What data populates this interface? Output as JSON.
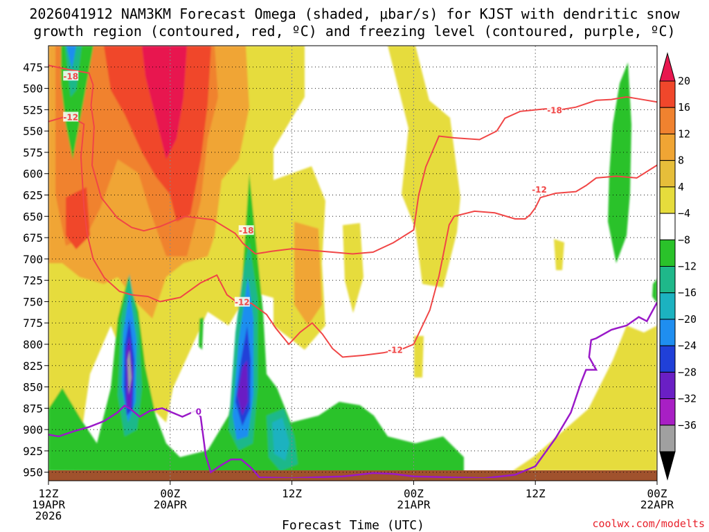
{
  "chart_data": {
    "type": "heatmap",
    "title_line1": "2026041912 NAM3KM Forecast Omega (shaded, μbar/s) for KJST with dendritic snow",
    "title_line2": "growth region (contoured, red, ºC) and freezing level (contoured, purple, ºC)",
    "xlabel": "Forecast Time (UTC)",
    "credit": "coolwx.com/modelts",
    "y_ticks": [
      475,
      500,
      525,
      550,
      575,
      600,
      625,
      650,
      675,
      700,
      725,
      750,
      775,
      800,
      825,
      850,
      875,
      900,
      925,
      950
    ],
    "y_range_hpa": [
      450,
      960
    ],
    "x_range_hours": [
      0,
      60
    ],
    "x_ticks": [
      {
        "hour": 0,
        "line1": "12Z",
        "line2": "19APR",
        "line3": "2026"
      },
      {
        "hour": 12,
        "line1": "00Z",
        "line2": "20APR",
        "line3": ""
      },
      {
        "hour": 24,
        "line1": "12Z",
        "line2": "",
        "line3": ""
      },
      {
        "hour": 36,
        "line1": "00Z",
        "line2": "21APR",
        "line3": ""
      },
      {
        "hour": 48,
        "line1": "12Z",
        "line2": "",
        "line3": ""
      },
      {
        "hour": 60,
        "line1": "00Z",
        "line2": "22APR",
        "line3": ""
      }
    ],
    "colorbar": {
      "labels": [
        "20",
        "16",
        "12",
        "8",
        "4",
        "−4",
        "−8",
        "−12",
        "−16",
        "−20",
        "−24",
        "−28",
        "−32",
        "−36"
      ],
      "colors": [
        "#e8174f",
        "#f0472b",
        "#f0822f",
        "#f0a534",
        "#e6be3a",
        "#e6dc3c",
        "#ffffff",
        "#2ac22a",
        "#1fb88a",
        "#1cb2c0",
        "#1f8ef0",
        "#2040d8",
        "#6a1fc4",
        "#a81fc4",
        "#a0a0a0",
        "#000000"
      ]
    },
    "omega_features": [
      {
        "name": "upward motion core",
        "t": [
          3.5,
          6.5
        ],
        "p": [
          440,
          660
        ],
        "value": 14
      },
      {
        "name": "upward motion max",
        "t": [
          10.5,
          13.5
        ],
        "p": [
          440,
          620
        ],
        "value": 20
      },
      {
        "name": "subsidence column 1",
        "t": [
          7.3,
          8.6
        ],
        "p": [
          690,
          910
        ],
        "value": -28
      },
      {
        "name": "subsidence column 2",
        "t": [
          17.5,
          19.5
        ],
        "p": [
          580,
          900
        ],
        "value": -28
      },
      {
        "name": "low-level sinking",
        "t": [
          19,
          41
        ],
        "p": [
          830,
          950
        ],
        "value": -8
      },
      {
        "name": "east green band",
        "t": [
          55.5,
          57.5
        ],
        "p": [
          470,
          670
        ],
        "value": -6
      },
      {
        "name": "late rising motion",
        "t": [
          52,
          60
        ],
        "p": [
          760,
          950
        ],
        "value": 6
      }
    ],
    "dgz_contours": [
      {
        "label": "-18",
        "points": [
          [
            0,
            473
          ],
          [
            2,
            478
          ],
          [
            4,
            482
          ],
          [
            4.4,
            496
          ],
          [
            4.2,
            520
          ],
          [
            4.5,
            545
          ],
          [
            4.3,
            590
          ],
          [
            5.2,
            628
          ],
          [
            6.8,
            652
          ],
          [
            8.2,
            663
          ],
          [
            9.4,
            667
          ],
          [
            11,
            662
          ],
          [
            13.4,
            650
          ],
          [
            16.2,
            654
          ],
          [
            18.4,
            670
          ],
          [
            19.2,
            682
          ],
          [
            20.4,
            694
          ],
          [
            22,
            691
          ],
          [
            24,
            688
          ],
          [
            26,
            690
          ],
          [
            28,
            692
          ],
          [
            30,
            694
          ],
          [
            32,
            692
          ],
          [
            34,
            681
          ],
          [
            36,
            666
          ],
          [
            36.5,
            625
          ],
          [
            37.2,
            592
          ],
          [
            38.5,
            556
          ],
          [
            40,
            558
          ],
          [
            42.5,
            560
          ],
          [
            44.2,
            550
          ],
          [
            45,
            535
          ],
          [
            46.5,
            527
          ],
          [
            49,
            524
          ],
          [
            50.5,
            525
          ],
          [
            52,
            522
          ],
          [
            54,
            514
          ],
          [
            55.5,
            513
          ],
          [
            57,
            510
          ],
          [
            58,
            512
          ],
          [
            60,
            516
          ]
        ]
      },
      {
        "label": "-12",
        "points": [
          [
            0,
            539
          ],
          [
            2,
            532
          ],
          [
            3.5,
            542
          ],
          [
            3.2,
            580
          ],
          [
            3.5,
            640
          ],
          [
            3.8,
            670
          ],
          [
            4.4,
            700
          ],
          [
            5.5,
            722
          ],
          [
            7,
            738
          ],
          [
            8.2,
            742
          ],
          [
            9.8,
            744
          ],
          [
            11,
            750
          ],
          [
            13,
            745
          ],
          [
            15,
            728
          ],
          [
            16.6,
            719
          ],
          [
            17.6,
            742
          ],
          [
            18.5,
            750
          ],
          [
            20,
            752
          ],
          [
            21.5,
            765
          ],
          [
            22.4,
            781
          ],
          [
            23.7,
            800
          ],
          [
            24.8,
            786
          ],
          [
            26,
            775
          ],
          [
            27,
            788
          ],
          [
            28,
            805
          ],
          [
            29,
            815
          ],
          [
            31,
            813
          ],
          [
            33,
            810
          ],
          [
            35,
            805
          ],
          [
            36,
            800
          ],
          [
            37.6,
            760
          ],
          [
            38.5,
            720
          ],
          [
            39,
            690
          ],
          [
            39.5,
            660
          ],
          [
            40,
            650
          ],
          [
            42,
            644
          ],
          [
            44,
            646
          ],
          [
            46,
            653
          ],
          [
            47,
            653
          ],
          [
            47.5,
            648
          ],
          [
            48,
            640
          ],
          [
            48.5,
            628
          ],
          [
            50,
            623
          ],
          [
            52,
            621
          ],
          [
            53,
            614
          ],
          [
            54,
            605
          ],
          [
            56,
            603
          ],
          [
            58,
            605
          ],
          [
            60,
            590
          ]
        ]
      }
    ],
    "freezing_contour": {
      "label": "0",
      "points": [
        [
          0,
          906
        ],
        [
          1,
          908
        ],
        [
          2.5,
          902
        ],
        [
          4,
          897
        ],
        [
          5.5,
          890
        ],
        [
          6.8,
          880
        ],
        [
          7.5,
          872
        ],
        [
          8.1,
          876
        ],
        [
          9,
          885
        ],
        [
          10,
          878
        ],
        [
          11.2,
          875
        ],
        [
          12.2,
          880
        ],
        [
          13.2,
          885
        ],
        [
          14.5,
          878
        ],
        [
          15,
          885
        ],
        [
          15.5,
          930
        ],
        [
          16,
          950
        ],
        [
          17,
          942
        ],
        [
          18,
          935
        ],
        [
          19,
          935
        ],
        [
          20,
          945
        ],
        [
          20.8,
          956
        ],
        [
          24,
          957
        ],
        [
          29,
          955
        ],
        [
          32,
          951
        ],
        [
          34,
          952
        ],
        [
          36,
          955
        ],
        [
          43,
          957
        ],
        [
          46,
          953
        ],
        [
          48,
          943
        ],
        [
          50,
          910
        ],
        [
          51.5,
          880
        ],
        [
          52.5,
          845
        ],
        [
          53,
          830
        ],
        [
          54,
          830
        ],
        [
          53.3,
          815
        ],
        [
          53.5,
          795
        ],
        [
          54,
          793
        ],
        [
          55.5,
          783
        ],
        [
          57,
          778
        ],
        [
          58.2,
          768
        ],
        [
          59,
          773
        ],
        [
          60,
          751
        ]
      ]
    },
    "contour_label_positions": [
      {
        "text": "-18",
        "t": 2.2,
        "p": 486,
        "color": "#f04646"
      },
      {
        "text": "-12",
        "t": 2.2,
        "p": 534,
        "color": "#f04646"
      },
      {
        "text": "-18",
        "t": 19.5,
        "p": 667,
        "color": "#f04646"
      },
      {
        "text": "-12",
        "t": 19.1,
        "p": 751,
        "color": "#f04646"
      },
      {
        "text": "-12",
        "t": 34.2,
        "p": 807,
        "color": "#f04646"
      },
      {
        "text": "-18",
        "t": 49.9,
        "p": 526,
        "color": "#f04646"
      },
      {
        "text": "-12",
        "t": 48.4,
        "p": 619,
        "color": "#f04646"
      },
      {
        "text": "0",
        "t": 14.8,
        "p": 879,
        "color": "#9a19c8"
      }
    ]
  }
}
